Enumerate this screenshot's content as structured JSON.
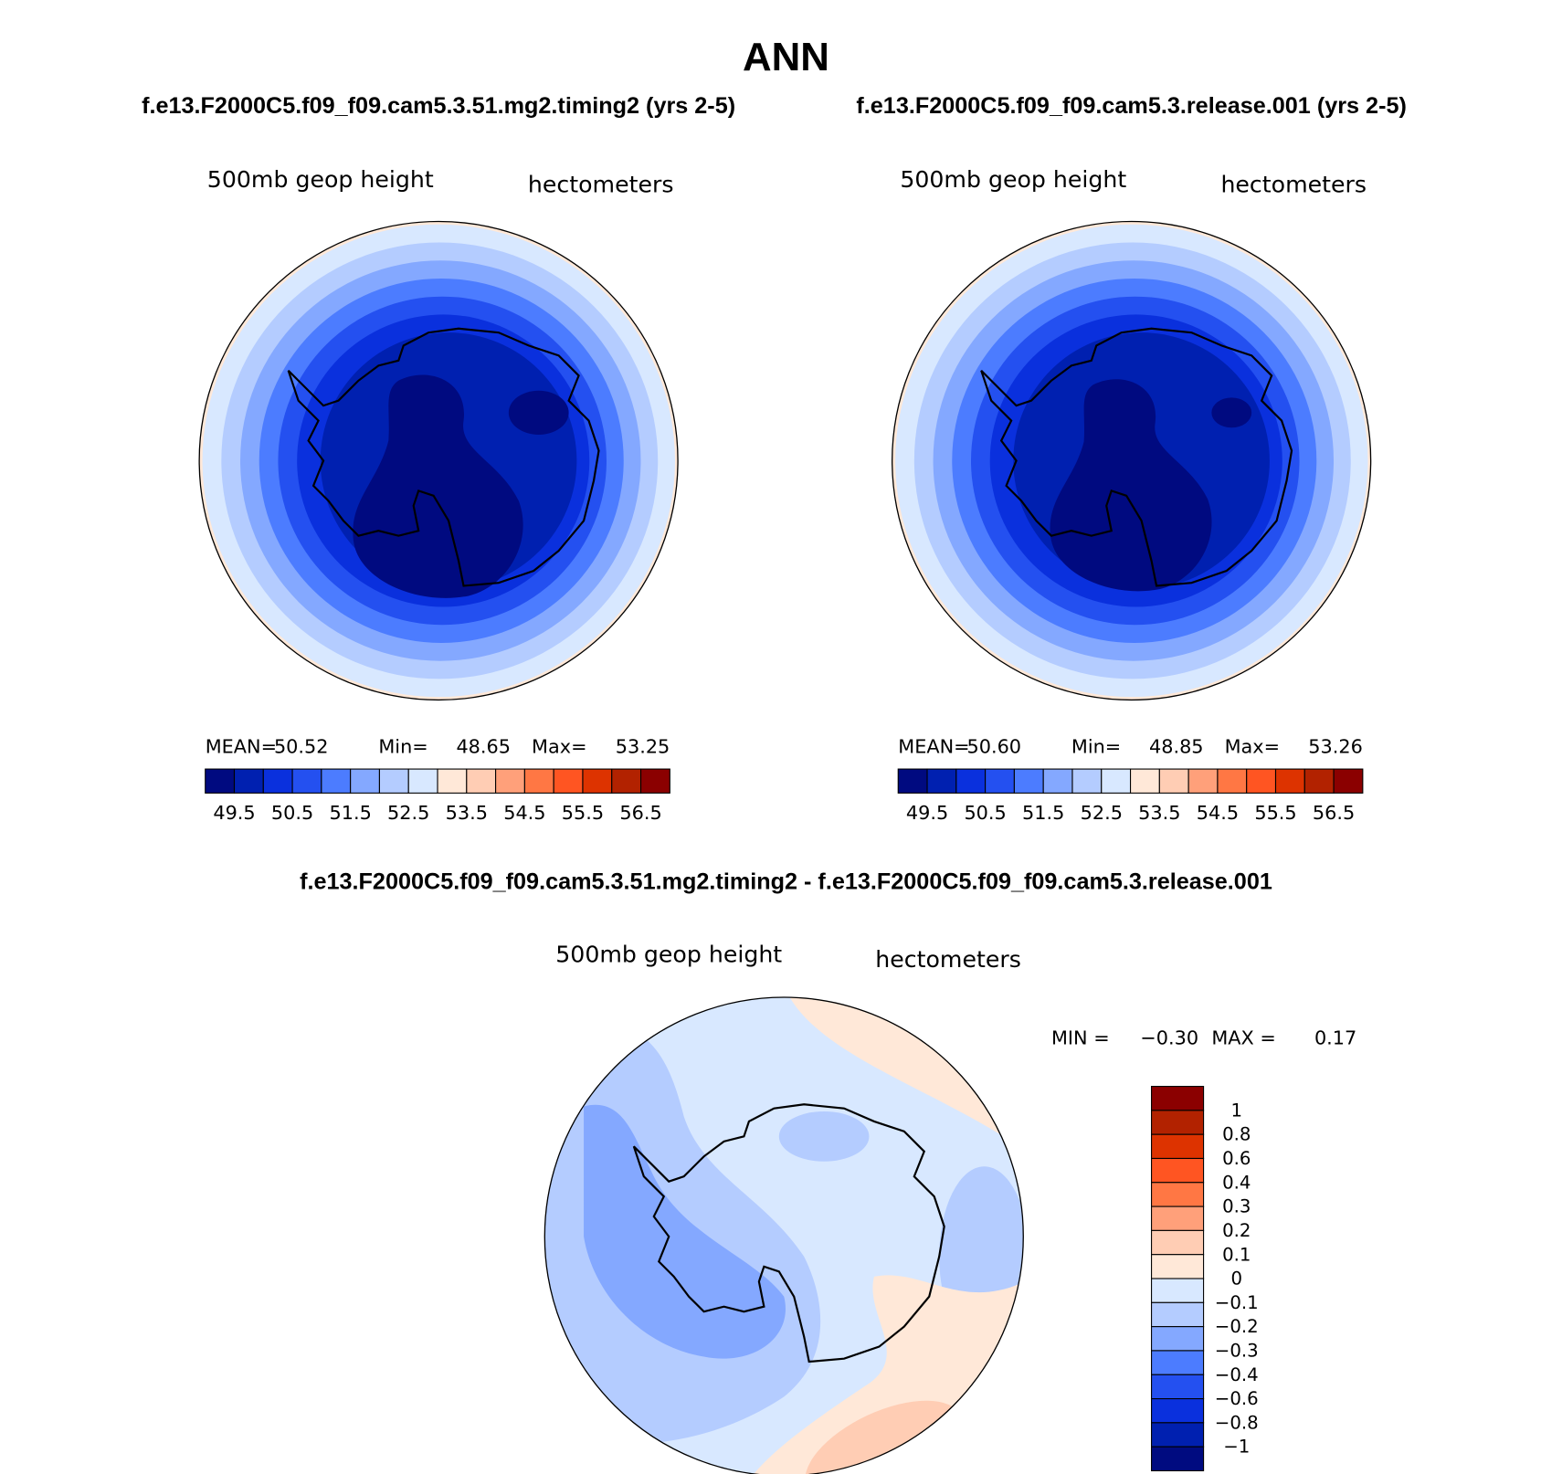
{
  "title": "ANN",
  "panels": [
    {
      "case_title": "f.e13.F2000C5.f09_f09.cam5.3.51.mg2.timing2 (yrs 2-5)",
      "variable": "500mb geop height",
      "units": "hectometers",
      "stats": [
        [
          "MEAN=",
          "50.52"
        ],
        [
          "Min=",
          "48.65"
        ],
        [
          "Max=",
          "53.25"
        ]
      ],
      "colorbar": {
        "colors": [
          "#000a80",
          "#0020b0",
          "#0a30dd",
          "#2450f0",
          "#4c7cff",
          "#84a8ff",
          "#b4ccff",
          "#d8e8ff",
          "#ffe8d8",
          "#ffcdb4",
          "#ffa07a",
          "#ff7744",
          "#ff5522",
          "#dd3300",
          "#b22200",
          "#8b0000"
        ],
        "labels": [
          "49.5",
          "50.5",
          "51.5",
          "52.5",
          "53.5",
          "54.5",
          "55.5",
          "56.5"
        ]
      }
    },
    {
      "case_title": "f.e13.F2000C5.f09_f09.cam5.3.release.001 (yrs 2-5)",
      "variable": "500mb geop height",
      "units": "hectometers",
      "stats": [
        [
          "MEAN=",
          "50.60"
        ],
        [
          "Min=",
          "48.85"
        ],
        [
          "Max=",
          "53.26"
        ]
      ],
      "colorbar": {
        "colors": [
          "#000a80",
          "#0020b0",
          "#0a30dd",
          "#2450f0",
          "#4c7cff",
          "#84a8ff",
          "#b4ccff",
          "#d8e8ff",
          "#ffe8d8",
          "#ffcdb4",
          "#ffa07a",
          "#ff7744",
          "#ff5522",
          "#dd3300",
          "#b22200",
          "#8b0000"
        ],
        "labels": [
          "49.5",
          "50.5",
          "51.5",
          "52.5",
          "53.5",
          "54.5",
          "55.5",
          "56.5"
        ]
      }
    }
  ],
  "difference": {
    "title": "f.e13.F2000C5.f09_f09.cam5.3.51.mg2.timing2 - f.e13.F2000C5.f09_f09.cam5.3.release.001",
    "variable": "500mb geop height",
    "units": "hectometers",
    "stats": [
      [
        "MIN =",
        "−0.30"
      ],
      [
        "MAX =",
        "0.17"
      ]
    ],
    "colorbar": {
      "colors": [
        "#8b0000",
        "#b22200",
        "#dd3300",
        "#ff5522",
        "#ff7744",
        "#ffa07a",
        "#ffcdb4",
        "#ffe8d8",
        "#d8e8ff",
        "#b4ccff",
        "#84a8ff",
        "#4c7cff",
        "#2450f0",
        "#0a30dd",
        "#0020b0",
        "#000b80"
      ],
      "labels": [
        "1",
        "0.8",
        "0.6",
        "0.4",
        "0.3",
        "0.2",
        "0.1",
        "0",
        "−0.1",
        "−0.2",
        "−0.3",
        "−0.4",
        "−0.6",
        "−0.8",
        "−1"
      ]
    }
  }
}
